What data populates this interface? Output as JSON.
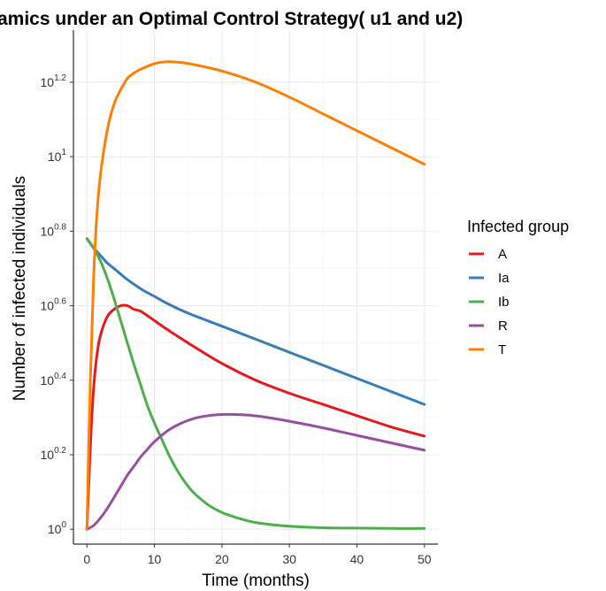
{
  "chart_data": {
    "type": "line",
    "title": "amics under an Optimal Control Strategy( u1 and u2)",
    "xlabel": "Time (months)",
    "ylabel": "Number of infected individuals",
    "xlim": [
      -2,
      52
    ],
    "ylim": [
      -0.04,
      1.34
    ],
    "y_scale": "log10",
    "x_ticks": [
      0,
      10,
      20,
      30,
      40,
      50
    ],
    "y_ticks": [
      {
        "base": "10",
        "exp": "0",
        "value": 0
      },
      {
        "base": "10",
        "exp": "0.2",
        "value": 0.2
      },
      {
        "base": "10",
        "exp": "0.4",
        "value": 0.4
      },
      {
        "base": "10",
        "exp": "0.6",
        "value": 0.6
      },
      {
        "base": "10",
        "exp": "0.8",
        "value": 0.8
      },
      {
        "base": "10",
        "exp": "1",
        "value": 1.0
      },
      {
        "base": "10",
        "exp": "1.2",
        "value": 1.2
      }
    ],
    "grid": true,
    "legend": {
      "title": "Infected group",
      "position": "right"
    },
    "series": [
      {
        "name": "A",
        "color": "#E41A1C",
        "x": [
          0,
          0.5,
          1,
          1.5,
          2,
          3,
          4,
          5,
          6,
          7,
          8,
          10,
          12,
          15,
          20,
          25,
          30,
          35,
          40,
          45,
          50
        ],
        "y": [
          0.0,
          0.22,
          0.38,
          0.47,
          0.52,
          0.57,
          0.59,
          0.6,
          0.6,
          0.59,
          0.585,
          0.56,
          0.535,
          0.5,
          0.445,
          0.4,
          0.365,
          0.335,
          0.305,
          0.275,
          0.25
        ]
      },
      {
        "name": "Ia",
        "color": "#377EB8",
        "x": [
          0,
          1,
          2,
          3,
          4,
          5,
          6,
          8,
          10,
          12,
          15,
          20,
          25,
          30,
          35,
          40,
          45,
          50
        ],
        "y": [
          0.78,
          0.755,
          0.735,
          0.715,
          0.7,
          0.685,
          0.67,
          0.645,
          0.625,
          0.605,
          0.58,
          0.545,
          0.51,
          0.475,
          0.44,
          0.405,
          0.37,
          0.335
        ]
      },
      {
        "name": "Ib",
        "color": "#4DAF4A",
        "x": [
          0,
          1,
          2,
          3,
          4,
          5,
          6,
          7,
          8,
          9,
          10,
          11,
          12,
          13,
          14,
          15,
          16,
          18,
          20,
          22,
          25,
          30,
          35,
          40,
          45,
          50
        ],
        "y": [
          0.78,
          0.755,
          0.72,
          0.675,
          0.62,
          0.56,
          0.5,
          0.44,
          0.385,
          0.33,
          0.285,
          0.245,
          0.205,
          0.17,
          0.14,
          0.115,
          0.095,
          0.065,
          0.045,
          0.032,
          0.018,
          0.008,
          0.004,
          0.003,
          0.002,
          0.002
        ]
      },
      {
        "name": "R",
        "color": "#984EA3",
        "x": [
          0,
          1,
          2,
          3,
          4,
          5,
          6,
          7,
          8,
          9,
          10,
          12,
          14,
          16,
          18,
          20,
          22,
          24,
          26,
          30,
          35,
          40,
          45,
          50
        ],
        "y": [
          0.0,
          0.01,
          0.03,
          0.055,
          0.085,
          0.115,
          0.145,
          0.17,
          0.195,
          0.215,
          0.235,
          0.265,
          0.285,
          0.298,
          0.305,
          0.308,
          0.308,
          0.306,
          0.302,
          0.29,
          0.272,
          0.252,
          0.232,
          0.212
        ]
      },
      {
        "name": "T",
        "color": "#FF7F00",
        "x": [
          0,
          0.5,
          1,
          1.5,
          2,
          3,
          4,
          5,
          6,
          7,
          8,
          10,
          12,
          14,
          16,
          20,
          25,
          30,
          35,
          40,
          45,
          50
        ],
        "y": [
          0.0,
          0.4,
          0.68,
          0.85,
          0.95,
          1.07,
          1.14,
          1.18,
          1.21,
          1.225,
          1.235,
          1.25,
          1.255,
          1.253,
          1.247,
          1.23,
          1.2,
          1.16,
          1.115,
          1.07,
          1.025,
          0.98
        ]
      }
    ]
  }
}
